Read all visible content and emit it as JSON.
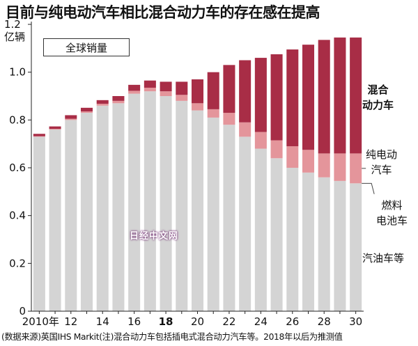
{
  "header": {
    "title": "目前与纯电动汽车相比混合动力车的存在感在提高",
    "unit": "1.2\n亿辆"
  },
  "legend_box": "全球销量",
  "series_labels": {
    "hybrid": "混合\n动力车",
    "ev": "纯电动\n汽车",
    "fuel_cell": "燃料\n电池车",
    "gasoline": "汽油车等"
  },
  "footer": "(数据来源)英国IHS Markit(注)混合动力车包括插电式混合动力汽车等。2018年以后为推测值",
  "watermark": "日经中文网",
  "colors": {
    "gasoline": "#d4d4d4",
    "fuel_cell": "#ffffff",
    "ev": "#e4959b",
    "hybrid": "#a82d46"
  },
  "chart_data": {
    "type": "bar",
    "stacked": true,
    "title": "目前与纯电动汽车相比混合动力车的存在感在提高",
    "ylabel": "亿辆",
    "ylim": [
      0,
      1.2
    ],
    "yticks": [
      0,
      0.2,
      0.4,
      0.6,
      0.8,
      1.0,
      1.2
    ],
    "ytick_labels": [
      "0",
      "0.2",
      "0.4",
      "0.6",
      "0.8",
      "1.0",
      ""
    ],
    "grid": false,
    "categories": [
      "2010",
      "2011",
      "2012",
      "2013",
      "2014",
      "2015",
      "2016",
      "2017",
      "2018",
      "2019",
      "2020",
      "2021",
      "2022",
      "2023",
      "2024",
      "2025",
      "2026",
      "2027",
      "2028",
      "2029",
      "2030"
    ],
    "xtick_labels": [
      "2010年",
      "",
      "12",
      "",
      "14",
      "",
      "16",
      "",
      "18",
      "",
      "20",
      "",
      "22",
      "",
      "24",
      "",
      "26",
      "",
      "28",
      "",
      "30"
    ],
    "bold_tick": "18",
    "series": [
      {
        "name": "汽油车等",
        "key": "gasoline",
        "values": [
          0.73,
          0.76,
          0.8,
          0.83,
          0.86,
          0.87,
          0.91,
          0.92,
          0.9,
          0.88,
          0.84,
          0.81,
          0.78,
          0.73,
          0.68,
          0.64,
          0.6,
          0.58,
          0.56,
          0.545,
          0.535
        ]
      },
      {
        "name": "燃料电池车",
        "key": "fuel_cell",
        "values": [
          0,
          0,
          0,
          0,
          0,
          0,
          0,
          0,
          0,
          0,
          0,
          0,
          0,
          0,
          0,
          0,
          0,
          0,
          0,
          0,
          0
        ]
      },
      {
        "name": "纯电动汽车",
        "key": "ev",
        "values": [
          0.002,
          0.003,
          0.005,
          0.006,
          0.008,
          0.01,
          0.012,
          0.015,
          0.02,
          0.025,
          0.03,
          0.035,
          0.05,
          0.06,
          0.07,
          0.075,
          0.09,
          0.095,
          0.1,
          0.115,
          0.125
        ]
      },
      {
        "name": "混合动力车",
        "key": "hybrid",
        "values": [
          0.01,
          0.01,
          0.015,
          0.015,
          0.015,
          0.02,
          0.025,
          0.03,
          0.04,
          0.055,
          0.1,
          0.155,
          0.2,
          0.26,
          0.31,
          0.36,
          0.405,
          0.44,
          0.475,
          0.485,
          0.485
        ]
      }
    ]
  }
}
